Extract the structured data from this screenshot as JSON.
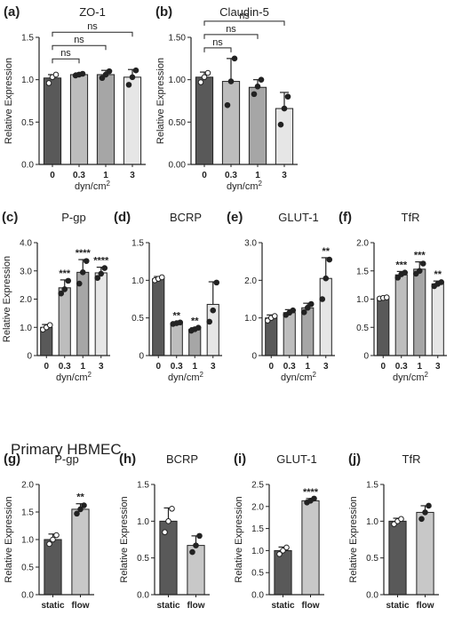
{
  "section_label": "Primary HBMEC",
  "colors": {
    "bar": [
      "#595959",
      "#bdbdbd",
      "#a6a6a6",
      "#e6e6e6"
    ],
    "flow": "#c8c8c8",
    "axis": "#222222"
  },
  "chart_data": [
    {
      "id": "a",
      "panel": "(a)",
      "type": "bar",
      "title": "ZO-1",
      "categories": [
        "0",
        "0.3",
        "1",
        "3"
      ],
      "values": [
        1.02,
        1.06,
        1.06,
        1.03
      ],
      "errors": [
        0.04,
        0.02,
        0.05,
        0.09
      ],
      "points": [
        [
          0.96,
          1.03,
          1.06
        ],
        [
          1.05,
          1.06,
          1.07
        ],
        [
          1.02,
          1.06,
          1.1
        ],
        [
          0.94,
          1.03,
          1.11
        ]
      ],
      "ylim": [
        0,
        1.5
      ],
      "yticks": [
        "0.0",
        "0.5",
        "1.0",
        "1.5"
      ],
      "ylabel": "Relative Expression",
      "xlabel": "dyn/cm²",
      "brackets": [
        {
          "to": 1,
          "label": "ns"
        },
        {
          "to": 2,
          "label": "ns"
        },
        {
          "to": 3,
          "label": "ns"
        }
      ],
      "stars": [
        "",
        "",
        "",
        ""
      ]
    },
    {
      "id": "b",
      "panel": "(b)",
      "type": "bar",
      "title": "Claudin-5",
      "categories": [
        "0",
        "0.3",
        "1",
        "3"
      ],
      "values": [
        1.03,
        0.98,
        0.91,
        0.66
      ],
      "errors": [
        0.06,
        0.27,
        0.09,
        0.19
      ],
      "points": [
        [
          0.97,
          1.03,
          1.08
        ],
        [
          0.7,
          0.98,
          1.25
        ],
        [
          0.83,
          0.92,
          1.0
        ],
        [
          0.47,
          0.66,
          0.8
        ]
      ],
      "ylim": [
        0,
        1.5
      ],
      "yticks": [
        "0.00",
        "0.50",
        "1.00",
        "1.50"
      ],
      "ylabel": "Relative Expression",
      "xlabel": "dyn/cm²",
      "brackets": [
        {
          "to": 1,
          "label": "ns"
        },
        {
          "to": 2,
          "label": "ns"
        },
        {
          "to": 3,
          "label": "ns"
        }
      ],
      "stars": [
        "",
        "",
        "",
        ""
      ]
    },
    {
      "id": "c",
      "panel": "(c)",
      "type": "bar",
      "title": "P-gp",
      "categories": [
        "0",
        "0.3",
        "1",
        "3"
      ],
      "values": [
        1.0,
        2.4,
        2.95,
        2.93
      ],
      "errors": [
        0.1,
        0.28,
        0.45,
        0.2
      ],
      "points": [
        [
          0.92,
          1.0,
          1.08
        ],
        [
          2.2,
          2.35,
          2.65
        ],
        [
          2.55,
          2.95,
          3.35
        ],
        [
          2.75,
          2.9,
          3.1
        ]
      ],
      "ylim": [
        0,
        4.0
      ],
      "yticks": [
        "0",
        "1.0",
        "2.0",
        "3.0",
        "4.0"
      ],
      "ylabel": "Relative Expression",
      "xlabel": "dyn/cm²",
      "brackets": [],
      "stars": [
        "",
        "***",
        "****",
        "****"
      ]
    },
    {
      "id": "d",
      "panel": "(d)",
      "type": "bar",
      "title": "BCRP",
      "categories": [
        "0",
        "0.3",
        "1",
        "3"
      ],
      "values": [
        1.02,
        0.43,
        0.35,
        0.68
      ],
      "errors": [
        0.03,
        0.01,
        0.02,
        0.3
      ],
      "points": [
        [
          1.0,
          1.02,
          1.04
        ],
        [
          0.42,
          0.43,
          0.44
        ],
        [
          0.33,
          0.35,
          0.37
        ],
        [
          0.45,
          0.6,
          0.97
        ]
      ],
      "ylim": [
        0,
        1.5
      ],
      "yticks": [
        "0",
        "0.5",
        "1.0",
        "1.5"
      ],
      "ylabel": "",
      "xlabel": "dyn/cm²",
      "brackets": [],
      "stars": [
        "",
        "**",
        "**",
        ""
      ]
    },
    {
      "id": "e",
      "panel": "(e)",
      "type": "bar",
      "title": "GLUT-1",
      "categories": [
        "0",
        "0.3",
        "1",
        "3"
      ],
      "values": [
        1.0,
        1.14,
        1.27,
        2.05
      ],
      "errors": [
        0.08,
        0.08,
        0.12,
        0.55
      ],
      "points": [
        [
          0.93,
          1.0,
          1.05
        ],
        [
          1.08,
          1.14,
          1.2
        ],
        [
          1.15,
          1.27,
          1.37
        ],
        [
          1.5,
          2.05,
          2.55
        ]
      ],
      "ylim": [
        0,
        3.0
      ],
      "yticks": [
        "0",
        "1.0",
        "2.0",
        "3.0"
      ],
      "ylabel": "",
      "xlabel": "dyn/cm²",
      "brackets": [],
      "stars": [
        "",
        "",
        "",
        "**"
      ]
    },
    {
      "id": "f",
      "panel": "(f)",
      "type": "bar",
      "title": "TfR",
      "categories": [
        "0",
        "0.3",
        "1",
        "3"
      ],
      "values": [
        1.02,
        1.43,
        1.53,
        1.27
      ],
      "errors": [
        0.02,
        0.06,
        0.13,
        0.05
      ],
      "points": [
        [
          1.01,
          1.02,
          1.03
        ],
        [
          1.38,
          1.44,
          1.47
        ],
        [
          1.45,
          1.5,
          1.63
        ],
        [
          1.23,
          1.27,
          1.3
        ]
      ],
      "ylim": [
        0,
        2.0
      ],
      "yticks": [
        "0",
        "0.5",
        "1.0",
        "1.5",
        "2.0"
      ],
      "ylabel": "",
      "xlabel": "dyn/cm²",
      "brackets": [],
      "stars": [
        "",
        "***",
        "***",
        "**"
      ]
    },
    {
      "id": "g",
      "panel": "(g)",
      "type": "bar",
      "title": "P-gp",
      "categories": [
        "static",
        "flow"
      ],
      "values": [
        1.0,
        1.55
      ],
      "errors": [
        0.1,
        0.1
      ],
      "points": [
        [
          0.92,
          1.0,
          1.08
        ],
        [
          1.47,
          1.55,
          1.62
        ]
      ],
      "ylim": [
        0,
        2.0
      ],
      "yticks": [
        "0.0",
        "0.5",
        "1.0",
        "1.5",
        "2.0"
      ],
      "ylabel": "Relative Expression",
      "xlabel": "",
      "brackets": [],
      "stars": [
        "",
        "**"
      ]
    },
    {
      "id": "h",
      "panel": "(h)",
      "type": "bar",
      "title": "BCRP",
      "categories": [
        "static",
        "flow"
      ],
      "values": [
        1.0,
        0.67
      ],
      "errors": [
        0.18,
        0.13
      ],
      "points": [
        [
          0.85,
          1.0,
          1.17
        ],
        [
          0.58,
          0.67,
          0.8
        ]
      ],
      "ylim": [
        0,
        1.5
      ],
      "yticks": [
        "0.0",
        "0.5",
        "1.0",
        "1.5"
      ],
      "ylabel": "Relative Expression",
      "xlabel": "",
      "brackets": [],
      "stars": [
        "",
        ""
      ]
    },
    {
      "id": "i",
      "panel": "(i)",
      "type": "bar",
      "title": "GLUT-1",
      "categories": [
        "static",
        "flow"
      ],
      "values": [
        1.0,
        2.13
      ],
      "errors": [
        0.08,
        0.05
      ],
      "points": [
        [
          0.92,
          1.0,
          1.07
        ],
        [
          2.09,
          2.13,
          2.18
        ]
      ],
      "ylim": [
        0,
        2.5
      ],
      "yticks": [
        "0.0",
        "0.5",
        "1.0",
        "1.5",
        "2.0",
        "2.5"
      ],
      "ylabel": "Relative Expression",
      "xlabel": "",
      "brackets": [],
      "stars": [
        "",
        "****"
      ]
    },
    {
      "id": "j",
      "panel": "(j)",
      "type": "bar",
      "title": "TfR",
      "categories": [
        "static",
        "flow"
      ],
      "values": [
        1.0,
        1.12
      ],
      "errors": [
        0.04,
        0.09
      ],
      "points": [
        [
          0.96,
          1.0,
          1.03
        ],
        [
          1.03,
          1.12,
          1.21
        ]
      ],
      "ylim": [
        0,
        1.5
      ],
      "yticks": [
        "0.0",
        "0.5",
        "1.0",
        "1.5"
      ],
      "ylabel": "Relative Expression",
      "xlabel": "",
      "brackets": [],
      "stars": [
        "",
        ""
      ]
    }
  ]
}
